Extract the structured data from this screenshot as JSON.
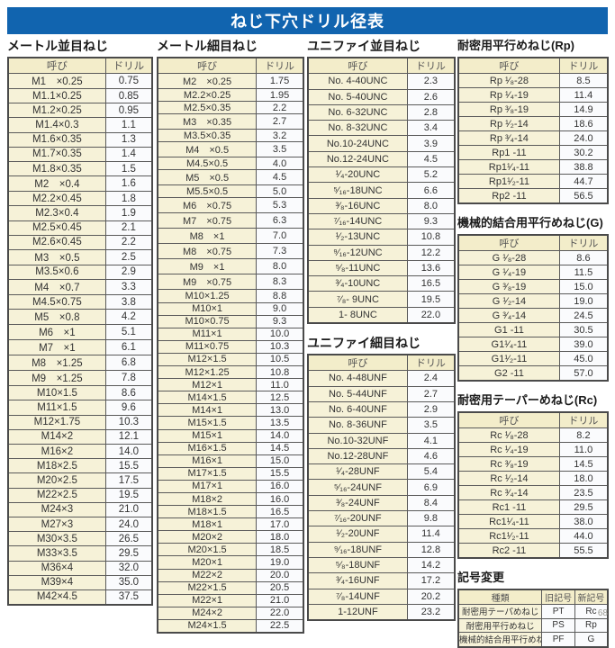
{
  "title": "ねじ下穴ドリル径表",
  "colors": {
    "banner_bg": "#1164af",
    "banner_text": "#ffffff",
    "header_cell_bg": "#f3edca",
    "name_cell_bg": "#f6f2d8",
    "value_cell_bg": "#fafbfd",
    "border": "#4a4a4a"
  },
  "page_number": "68",
  "sections": {
    "metric_coarse": {
      "title": "メートル並目ねじ",
      "headers": [
        "呼び",
        "ドリル"
      ],
      "rows": [
        [
          "M1　×0.25",
          "0.75"
        ],
        [
          "M1.1×0.25",
          "0.85"
        ],
        [
          "M1.2×0.25",
          "0.95"
        ],
        [
          "M1.4×0.3",
          "1.1"
        ],
        [
          "M1.6×0.35",
          "1.3"
        ],
        [
          "M1.7×0.35",
          "1.4"
        ],
        [
          "M1.8×0.35",
          "1.5"
        ],
        [
          "M2　×0.4",
          "1.6"
        ],
        [
          "M2.2×0.45",
          "1.8"
        ],
        [
          "M2.3×0.4",
          "1.9"
        ],
        [
          "M2.5×0.45",
          "2.1"
        ],
        [
          "M2.6×0.45",
          "2.2"
        ],
        [
          "M3　×0.5",
          "2.5"
        ],
        [
          "M3.5×0.6",
          "2.9"
        ],
        [
          "M4　×0.7",
          "3.3"
        ],
        [
          "M4.5×0.75",
          "3.8"
        ],
        [
          "M5　×0.8",
          "4.2"
        ],
        [
          "M6　×1",
          "5.1"
        ],
        [
          "M7　×1",
          "6.1"
        ],
        [
          "M8　×1.25",
          "6.8"
        ],
        [
          "M9　×1.25",
          "7.8"
        ],
        [
          "M10×1.5",
          "8.6"
        ],
        [
          "M11×1.5",
          "9.6"
        ],
        [
          "M12×1.75",
          "10.3"
        ],
        [
          "M14×2",
          "12.1"
        ],
        [
          "M16×2",
          "14.0"
        ],
        [
          "M18×2.5",
          "15.5"
        ],
        [
          "M20×2.5",
          "17.5"
        ],
        [
          "M22×2.5",
          "19.5"
        ],
        [
          "M24×3",
          "21.0"
        ],
        [
          "M27×3",
          "24.0"
        ],
        [
          "M30×3.5",
          "26.5"
        ],
        [
          "M33×3.5",
          "29.5"
        ],
        [
          "M36×4",
          "32.0"
        ],
        [
          "M39×4",
          "35.0"
        ],
        [
          "M42×4.5",
          "37.5"
        ]
      ]
    },
    "metric_fine": {
      "title": "メートル細目ねじ",
      "headers": [
        "呼び",
        "ドリル"
      ],
      "rows": [
        [
          "M2　×0.25",
          "1.75"
        ],
        [
          "M2.2×0.25",
          "1.95"
        ],
        [
          "M2.5×0.35",
          "2.2"
        ],
        [
          "M3　×0.35",
          "2.7"
        ],
        [
          "M3.5×0.35",
          "3.2"
        ],
        [
          "M4　×0.5",
          "3.5"
        ],
        [
          "M4.5×0.5",
          "4.0"
        ],
        [
          "M5　×0.5",
          "4.5"
        ],
        [
          "M5.5×0.5",
          "5.0"
        ],
        [
          "M6　×0.75",
          "5.3"
        ],
        [
          "M7　×0.75",
          "6.3"
        ],
        [
          "M8　×1",
          "7.0"
        ],
        [
          "M8　×0.75",
          "7.3"
        ],
        [
          "M9　×1",
          "8.0"
        ],
        [
          "M9　×0.75",
          "8.3"
        ],
        [
          "M10×1.25",
          "8.8"
        ],
        [
          "M10×1",
          "9.0"
        ],
        [
          "M10×0.75",
          "9.3"
        ],
        [
          "M11×1",
          "10.0"
        ],
        [
          "M11×0.75",
          "10.3"
        ],
        [
          "M12×1.5",
          "10.5"
        ],
        [
          "M12×1.25",
          "10.8"
        ],
        [
          "M12×1",
          "11.0"
        ],
        [
          "M14×1.5",
          "12.5"
        ],
        [
          "M14×1",
          "13.0"
        ],
        [
          "M15×1.5",
          "13.5"
        ],
        [
          "M15×1",
          "14.0"
        ],
        [
          "M16×1.5",
          "14.5"
        ],
        [
          "M16×1",
          "15.0"
        ],
        [
          "M17×1.5",
          "15.5"
        ],
        [
          "M17×1",
          "16.0"
        ],
        [
          "M18×2",
          "16.0"
        ],
        [
          "M18×1.5",
          "16.5"
        ],
        [
          "M18×1",
          "17.0"
        ],
        [
          "M20×2",
          "18.0"
        ],
        [
          "M20×1.5",
          "18.5"
        ],
        [
          "M20×1",
          "19.0"
        ],
        [
          "M22×2",
          "20.0"
        ],
        [
          "M22×1.5",
          "20.5"
        ],
        [
          "M22×1",
          "21.0"
        ],
        [
          "M24×2",
          "22.0"
        ],
        [
          "M24×1.5",
          "22.5"
        ]
      ]
    },
    "unified_coarse": {
      "title": "ユニファイ並目ねじ",
      "headers": [
        "呼び",
        "ドリル"
      ],
      "rows": [
        [
          "No.  4-40UNC",
          "2.3"
        ],
        [
          "No.  5-40UNC",
          "2.6"
        ],
        [
          "No.  6-32UNC",
          "2.8"
        ],
        [
          "No.  8-32UNC",
          "3.4"
        ],
        [
          "No.10-24UNC",
          "3.9"
        ],
        [
          "No.12-24UNC",
          "4.5"
        ],
        [
          "¹⁄₄-20UNC",
          "5.2"
        ],
        [
          "⁵⁄₁₆-18UNC",
          "6.6"
        ],
        [
          "³⁄₈-16UNC",
          "8.0"
        ],
        [
          "⁷⁄₁₆-14UNC",
          "9.3"
        ],
        [
          "¹⁄₂-13UNC",
          "10.8"
        ],
        [
          "⁹⁄₁₆-12UNC",
          "12.2"
        ],
        [
          "⁵⁄₈-11UNC",
          "13.6"
        ],
        [
          "³⁄₄-10UNC",
          "16.5"
        ],
        [
          "⁷⁄₈- 9UNC",
          "19.5"
        ],
        [
          "1-  8UNC",
          "22.0"
        ]
      ]
    },
    "unified_fine": {
      "title": "ユニファイ細目ねじ",
      "headers": [
        "呼び",
        "ドリル"
      ],
      "rows": [
        [
          "No.  4-48UNF",
          "2.4"
        ],
        [
          "No.  5-44UNF",
          "2.7"
        ],
        [
          "No.  6-40UNF",
          "2.9"
        ],
        [
          "No.  8-36UNF",
          "3.5"
        ],
        [
          "No.10-32UNF",
          "4.1"
        ],
        [
          "No.12-28UNF",
          "4.6"
        ],
        [
          "¹⁄₄-28UNF",
          "5.4"
        ],
        [
          "⁵⁄₁₆-24UNF",
          "6.9"
        ],
        [
          "³⁄₈-24UNF",
          "8.4"
        ],
        [
          "⁷⁄₁₆-20UNF",
          "9.8"
        ],
        [
          "¹⁄₂-20UNF",
          "11.4"
        ],
        [
          "⁹⁄₁₆-18UNF",
          "12.8"
        ],
        [
          "⁵⁄₈-18UNF",
          "14.2"
        ],
        [
          "³⁄₄-16UNF",
          "17.2"
        ],
        [
          "⁷⁄₈-14UNF",
          "20.2"
        ],
        [
          "1-12UNF",
          "23.2"
        ]
      ]
    },
    "rp": {
      "title": "耐密用平行めねじ(Rp)",
      "headers": [
        "呼び",
        "ドリル"
      ],
      "rows": [
        [
          "Rp  ¹⁄₈-28",
          "8.5"
        ],
        [
          "Rp  ¹⁄₄-19",
          "11.4"
        ],
        [
          "Rp  ³⁄₈-19",
          "14.9"
        ],
        [
          "Rp  ¹⁄₂-14",
          "18.6"
        ],
        [
          "Rp  ³⁄₄-14",
          "24.0"
        ],
        [
          "Rp1   -11",
          "30.2"
        ],
        [
          "Rp1¹⁄₄-11",
          "38.8"
        ],
        [
          "Rp1¹⁄₂-11",
          "44.7"
        ],
        [
          "Rp2   -11",
          "56.5"
        ]
      ]
    },
    "g": {
      "title": "機械的結合用平行めねじ(G)",
      "headers": [
        "呼び",
        "ドリル"
      ],
      "rows": [
        [
          "G  ¹⁄₈-28",
          "8.6"
        ],
        [
          "G  ¹⁄₄-19",
          "11.5"
        ],
        [
          "G  ³⁄₈-19",
          "15.0"
        ],
        [
          "G  ¹⁄₂-14",
          "19.0"
        ],
        [
          "G  ³⁄₄-14",
          "24.5"
        ],
        [
          "G1   -11",
          "30.5"
        ],
        [
          "G1¹⁄₄-11",
          "39.0"
        ],
        [
          "G1¹⁄₂-11",
          "45.0"
        ],
        [
          "G2   -11",
          "57.0"
        ]
      ]
    },
    "rc": {
      "title": "耐密用テーパーめねじ(Rc)",
      "headers": [
        "呼び",
        "ドリル"
      ],
      "rows": [
        [
          "Rc  ¹⁄₈-28",
          "8.2"
        ],
        [
          "Rc  ¹⁄₄-19",
          "11.0"
        ],
        [
          "Rc  ³⁄₈-19",
          "14.5"
        ],
        [
          "Rc  ¹⁄₂-14",
          "18.0"
        ],
        [
          "Rc  ³⁄₄-14",
          "23.5"
        ],
        [
          "Rc1   -11",
          "29.5"
        ],
        [
          "Rc1¹⁄₄-11",
          "38.0"
        ],
        [
          "Rc1¹⁄₂-11",
          "44.0"
        ],
        [
          "Rc2   -11",
          "55.5"
        ]
      ]
    },
    "symbol_change": {
      "title": "記号変更",
      "headers": [
        "種類",
        "旧記号",
        "新記号"
      ],
      "rows": [
        [
          "耐密用テーパめねじ",
          "PT",
          "Rc"
        ],
        [
          "耐密用平行めねじ",
          "PS",
          "Rp"
        ],
        [
          "機械的結合用平行めねじ",
          "PF",
          "G"
        ]
      ]
    }
  }
}
